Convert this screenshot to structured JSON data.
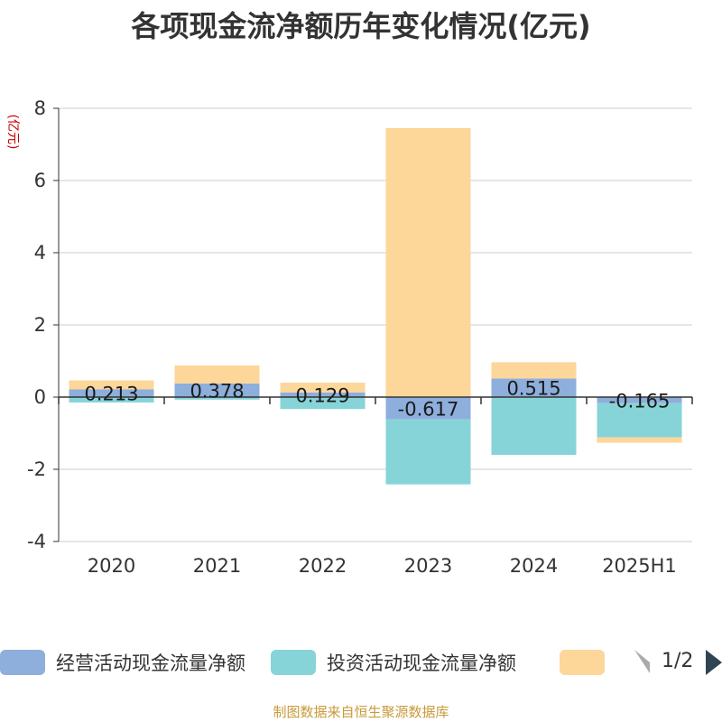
{
  "title": "各项现金流净额历年变化情况(亿元)",
  "source": "制图数据来自恒生聚源数据库",
  "legend_page": "1/2",
  "colors": {
    "operating": "#8eaedc",
    "investing": "#86d4d8",
    "financing": "#fdd69a",
    "axis": "#333333",
    "grid": "#cccccc",
    "ylabel": "#cc0000",
    "pager": "#aaaaaa",
    "pager_active": "#2f4554"
  },
  "chart_data": {
    "type": "bar",
    "stacked": true,
    "categories": [
      "2020",
      "2021",
      "2022",
      "2023",
      "2024",
      "2025H1"
    ],
    "ylabel": "(亿元)",
    "ylim": [
      -4,
      8
    ],
    "yticks": [
      -4,
      -2,
      0,
      2,
      4,
      6,
      8
    ],
    "grid": true,
    "legend_position": "bottom",
    "series": [
      {
        "name": "经营活动现金流量净额",
        "values": [
          0.213,
          0.378,
          0.129,
          -0.617,
          0.515,
          -0.165
        ],
        "labels": [
          "0.213",
          "0.378",
          "0.129",
          "-0.617",
          "0.515",
          "-0.165"
        ]
      },
      {
        "name": "投资活动现金流量净额",
        "values": [
          -0.15,
          -0.07,
          -0.33,
          -1.8,
          -1.6,
          -0.95
        ],
        "labels": []
      },
      {
        "name": "",
        "values": [
          0.25,
          0.5,
          0.27,
          7.45,
          0.45,
          -0.15
        ],
        "labels": []
      }
    ]
  }
}
